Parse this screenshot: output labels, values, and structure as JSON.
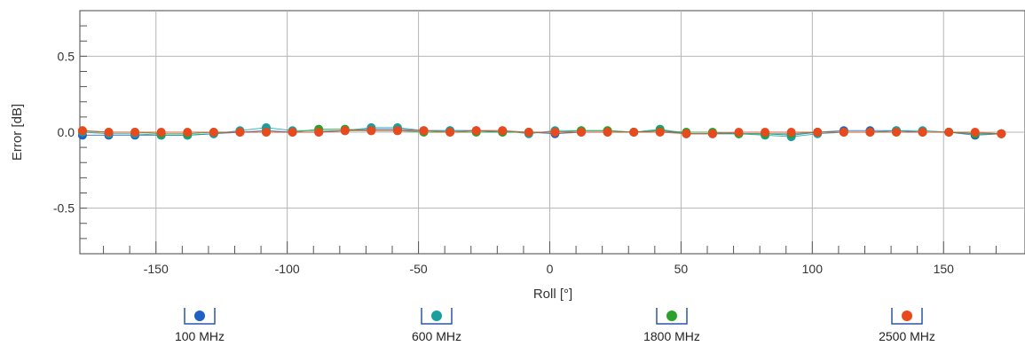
{
  "chart_data": {
    "type": "scatter",
    "title": "",
    "xlabel": "Roll [°]",
    "ylabel": "Error [dB]",
    "xlim": [
      -180,
      180
    ],
    "ylim": [
      -0.8,
      0.8
    ],
    "x_ticks": [
      -150,
      -100,
      -50,
      0,
      50,
      100,
      150
    ],
    "y_ticks": [
      -0.5,
      0.0,
      0.5
    ],
    "x_tick_labels": [
      "-150",
      "-100",
      "-50",
      "0",
      "50",
      "100",
      "150"
    ],
    "y_tick_labels": [
      "-0.5",
      "0.0",
      "0.5"
    ],
    "grid": true,
    "legend_position": "bottom",
    "x": [
      -178,
      -168,
      -158,
      -148,
      -138,
      -128,
      -118,
      -108,
      -98,
      -88,
      -78,
      -68,
      -58,
      -48,
      -38,
      -28,
      -18,
      -8,
      2,
      12,
      22,
      32,
      42,
      52,
      62,
      72,
      82,
      92,
      102,
      112,
      122,
      132,
      142,
      152,
      162,
      172
    ],
    "series": [
      {
        "name": "100 MHz",
        "color": "#1f5fc6",
        "values": [
          -0.02,
          -0.02,
          -0.02,
          -0.02,
          -0.02,
          -0.01,
          0.0,
          0.01,
          0.0,
          0.0,
          0.01,
          0.02,
          0.02,
          0.01,
          0.01,
          0.01,
          0.0,
          0.0,
          -0.01,
          0.0,
          0.0,
          0.0,
          0.01,
          -0.01,
          -0.01,
          -0.01,
          -0.01,
          -0.02,
          0.0,
          0.01,
          0.01,
          0.01,
          0.0,
          0.0,
          -0.02,
          -0.01
        ]
      },
      {
        "name": "600 MHz",
        "color": "#1a9e9e",
        "values": [
          0.0,
          -0.01,
          -0.01,
          -0.02,
          -0.02,
          -0.01,
          0.01,
          0.03,
          0.01,
          0.01,
          0.01,
          0.03,
          0.03,
          0.01,
          0.01,
          0.01,
          0.01,
          -0.01,
          0.01,
          0.01,
          0.01,
          0.0,
          0.02,
          -0.01,
          -0.01,
          -0.01,
          -0.02,
          -0.03,
          -0.01,
          0.0,
          0.0,
          0.01,
          0.01,
          0.0,
          -0.01,
          -0.01
        ]
      },
      {
        "name": "1800 MHz",
        "color": "#2ca02c",
        "values": [
          0.01,
          0.0,
          0.0,
          -0.01,
          -0.01,
          0.0,
          0.0,
          0.0,
          0.0,
          0.02,
          0.02,
          0.01,
          0.01,
          0.0,
          0.0,
          0.0,
          0.0,
          0.0,
          0.0,
          0.01,
          0.01,
          0.0,
          0.01,
          0.0,
          0.0,
          -0.01,
          -0.01,
          -0.01,
          0.0,
          0.0,
          0.0,
          0.0,
          0.0,
          0.0,
          -0.01,
          -0.01
        ]
      },
      {
        "name": "2500 MHz",
        "color": "#e84a1e",
        "values": [
          0.01,
          0.0,
          0.0,
          0.0,
          0.0,
          0.0,
          0.0,
          0.0,
          0.0,
          0.0,
          0.01,
          0.01,
          0.01,
          0.01,
          0.0,
          0.01,
          0.01,
          0.0,
          0.0,
          0.0,
          0.0,
          0.0,
          0.0,
          -0.01,
          -0.01,
          0.0,
          0.0,
          0.0,
          0.0,
          0.0,
          0.0,
          0.0,
          0.0,
          0.0,
          0.0,
          -0.01
        ]
      }
    ]
  }
}
